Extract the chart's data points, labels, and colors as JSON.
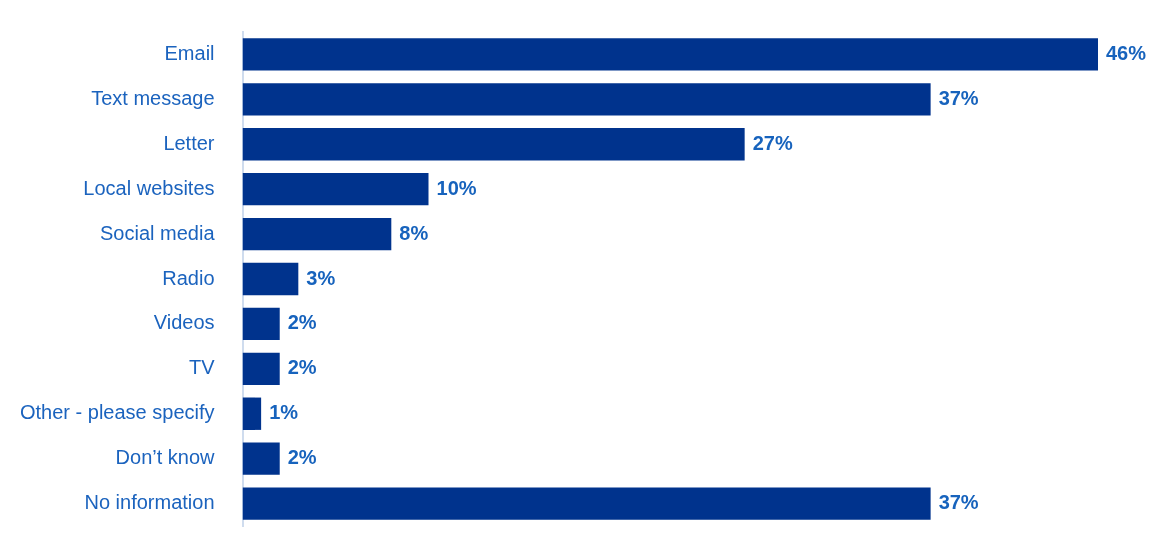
{
  "chart_data": {
    "type": "bar",
    "orientation": "horizontal",
    "categories": [
      "Email",
      "Text message",
      "Letter",
      "Local websites",
      "Social media",
      "Radio",
      "Videos",
      "TV",
      "Other - please specify",
      "Don’t know",
      "No information"
    ],
    "values": [
      46,
      37,
      27,
      10,
      8,
      3,
      2,
      2,
      1,
      2,
      37
    ],
    "value_labels": [
      "46%",
      "37%",
      "27%",
      "10%",
      "8%",
      "3%",
      "2%",
      "2%",
      "1%",
      "2%",
      "37%"
    ],
    "color": "#00338d",
    "grid": false,
    "legend": false
  }
}
